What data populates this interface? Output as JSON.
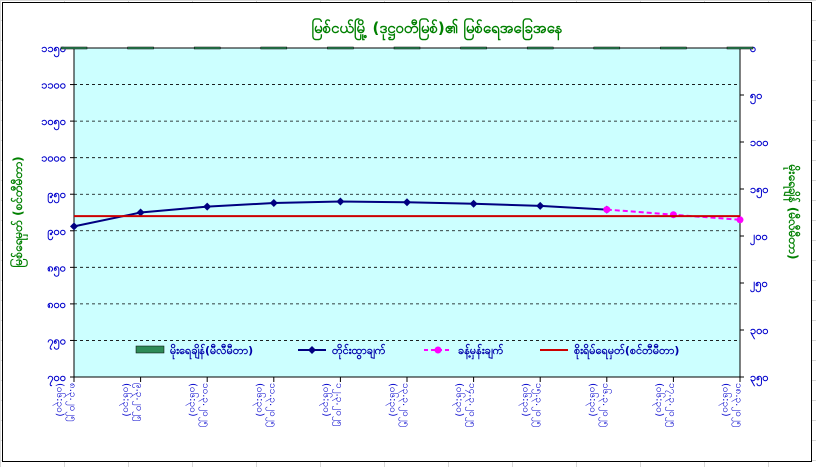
{
  "chart_data": {
    "type": "line",
    "title": "မြစ်ငယ်မြို့ (ဒုဋ္ဌဝတီမြစ်)၏ မြစ်ရေအခြေအနေ",
    "ylabel_left": "မြစ်ရေမှတ် (စင်တီမီတာ)",
    "ylabel_right": "မိုးရေချိန် (မီလီမီတာ)",
    "ylim_left": [
      700,
      1150
    ],
    "yticks_left": [
      "၁၁၅၀",
      "၁၁၀၀",
      "၁၀၅၀",
      "၁၀၀၀",
      "၉၅၀",
      "၉၀၀",
      "၈၅၀",
      "၈၀၀",
      "၇၅၀",
      "၇၀၀"
    ],
    "ylim_right": [
      0,
      350
    ],
    "yticks_right": [
      "၀",
      "၅၀",
      "၁၀၀",
      "၁၅၀",
      "၂၀၀",
      "၂၅၀",
      "၃၀၀",
      "၃၅၀"
    ],
    "categories": [
      "၈.၃.၂၀၂၅ (၀၆:၃၀)",
      "၉.၃.၂၀၂၅ (၀၆:၃၀)",
      "၁၀.၃.၂၀၂၅ (၀၆:၃၀)",
      "၁၁.၃.၂၀၂၅ (၀၆:၃၀)",
      "၁၂.၃.၂၀၂၅ (၀၆:၃၀)",
      "၁၃.၃.၂၀၂၅ (၀၆:၃၀)",
      "၁၄.၃.၂၀၂၅ (၀၆:၃၀)",
      "၁၅.၃.၂၀၂၅ (၀၆:၃၀)",
      "၁၆.၃.၂၀၂၅ (၀၆:၃၀)",
      "၁၇.၃.၂၀၂၅ (၀၆:၃၀)",
      "၁၈.၃.၂၀၂၅ (၀၆:၃၀)"
    ],
    "series": [
      {
        "name": "မိုးရေချိန်(မီလီမီတာ)",
        "kind": "bar",
        "axis": "right",
        "color": "#2e8b57",
        "values": [
          0,
          0,
          0,
          0,
          0,
          0,
          0,
          0,
          0,
          0,
          0
        ]
      },
      {
        "name": "တိုင်းထွာချက်",
        "kind": "line",
        "axis": "left",
        "color": "#000080",
        "values": [
          906,
          925,
          933,
          938,
          940,
          939,
          937,
          934,
          929,
          null,
          null
        ]
      },
      {
        "name": "ခန့်မှန်းချက်",
        "kind": "line-dashed",
        "axis": "left",
        "color": "#ff00ff",
        "values": [
          null,
          null,
          null,
          null,
          null,
          null,
          null,
          null,
          929,
          922,
          915
        ]
      },
      {
        "name": "စိုးရိမ်ရေမှတ်(စင်တီမီတာ)",
        "kind": "hline",
        "axis": "left",
        "color": "#cc0000",
        "value": 920
      }
    ],
    "grid": true,
    "legend_position": "bottom-inside"
  }
}
